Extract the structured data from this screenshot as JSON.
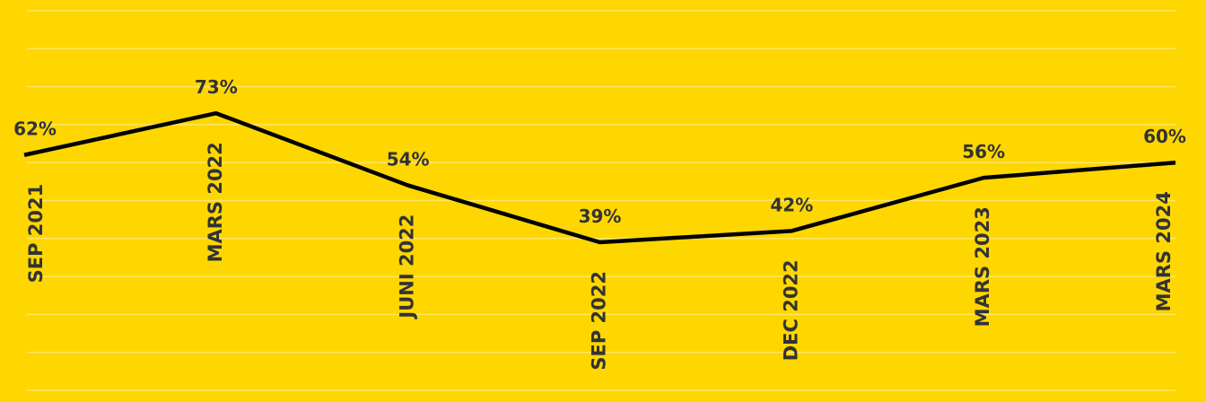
{
  "chart_data": {
    "type": "line",
    "categories": [
      "SEP 2021",
      "MARS 2022",
      "JUNI 2022",
      "SEP 2022",
      "DEC 2022",
      "MARS 2023",
      "MARS 2024"
    ],
    "values": [
      62,
      73,
      54,
      39,
      42,
      56,
      60
    ],
    "value_labels": [
      "62%",
      "73%",
      "54%",
      "39%",
      "42%",
      "56%",
      "60%"
    ],
    "color": "#000000",
    "ylim": [
      0,
      100
    ],
    "yticks": [
      0,
      10,
      20,
      30,
      40,
      50,
      60,
      70,
      80,
      90,
      100
    ],
    "grid": true
  }
}
